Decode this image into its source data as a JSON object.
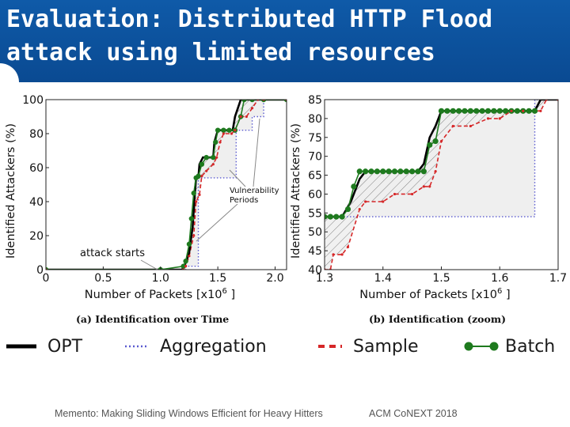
{
  "slide": {
    "title_line1": "Evaluation: Distributed HTTP Flood",
    "title_line2": "attack using limited resources",
    "footer_left": "Memento: Making Sliding Windows Efficient for Heavy Hitters",
    "footer_right": "ACM CoNEXT 2018"
  },
  "legend": [
    {
      "label": "OPT",
      "color": "#000000",
      "style": "solid"
    },
    {
      "label": "Aggregation",
      "color": "#5a5ad0",
      "style": "dotted"
    },
    {
      "label": "Sample",
      "color": "#d62728",
      "style": "dashed"
    },
    {
      "label": "Batch",
      "color": "#1e7a1e",
      "style": "dots"
    }
  ],
  "colors": {
    "title_bg": "#0f5aa8",
    "opt": "#000000",
    "aggregation": "#5a5ad0",
    "sample": "#d62728",
    "batch": "#1e7a1e",
    "shade": "#efefef"
  },
  "chart_data": [
    {
      "type": "line",
      "caption": "(a) Identification over Time",
      "xlabel": "Number of Packets [x10",
      "xlabel_exp": "6",
      "xlabel_end": "]",
      "ylabel": "Identified Attackers (%)",
      "xlim": [
        0,
        2.1
      ],
      "ylim": [
        0,
        100
      ],
      "xticks": [
        0,
        0.5,
        1.0,
        1.5,
        2.0
      ],
      "xtick_labels": [
        "0",
        "0.5",
        "1.0",
        "1.5",
        "2.0"
      ],
      "yticks": [
        0,
        20,
        40,
        60,
        80,
        100
      ],
      "yticks_labels": [
        "0",
        "20",
        "40",
        "60",
        "80",
        "100"
      ],
      "annotations": [
        {
          "text": "attack starts",
          "x": 1.0,
          "y": 0
        },
        {
          "text_lines": [
            "Vulnerability",
            "Periods"
          ],
          "x": [
            1.35,
            1.55
          ],
          "y": [
            8,
            55
          ]
        }
      ],
      "series": [
        {
          "key": "opt",
          "x": [
            0,
            1.19,
            1.2,
            1.22,
            1.25,
            1.28,
            1.3,
            1.31,
            1.33,
            1.34,
            1.37,
            1.46,
            1.47,
            1.5,
            1.55,
            1.63,
            1.65,
            1.7,
            1.73,
            2.1
          ],
          "y": [
            0,
            0,
            2,
            4,
            10,
            25,
            45,
            54,
            54,
            62,
            66,
            66,
            75,
            82,
            82,
            82,
            90,
            100,
            100,
            100
          ]
        },
        {
          "key": "aggregation",
          "x": [
            0,
            1.22,
            1.22,
            1.33,
            1.33,
            1.55,
            1.55,
            1.66,
            1.66,
            1.8,
            1.8,
            1.9,
            1.9,
            2.1
          ],
          "y": [
            0,
            0,
            2,
            2,
            54,
            54,
            54,
            54,
            82,
            82,
            90,
            90,
            100,
            100
          ]
        },
        {
          "key": "sample",
          "x": [
            0,
            1.2,
            1.22,
            1.25,
            1.29,
            1.31,
            1.34,
            1.36,
            1.4,
            1.46,
            1.49,
            1.52,
            1.55,
            1.62,
            1.65,
            1.7,
            1.75,
            1.8,
            1.85,
            1.9,
            2.1
          ],
          "y": [
            0,
            0,
            2,
            8,
            20,
            40,
            44,
            55,
            58,
            62,
            66,
            75,
            80,
            80,
            82,
            90,
            90,
            95,
            100,
            100,
            100
          ]
        },
        {
          "key": "batch",
          "x": [
            0,
            1.0,
            1.2,
            1.22,
            1.25,
            1.27,
            1.29,
            1.31,
            1.33,
            1.36,
            1.4,
            1.46,
            1.48,
            1.5,
            1.55,
            1.6,
            1.65,
            1.7,
            1.73,
            1.8,
            1.9,
            2.1
          ],
          "y": [
            0,
            0,
            2,
            5,
            15,
            30,
            45,
            54,
            55,
            62,
            66,
            66,
            75,
            82,
            82,
            82,
            82,
            90,
            100,
            100,
            100,
            100
          ]
        }
      ]
    },
    {
      "type": "line",
      "caption": "(b) Identification (zoom)",
      "xlabel": "Number of Packets [x10",
      "xlabel_exp": "6",
      "xlabel_end": "]",
      "ylabel": "Identified Attackers (%)",
      "xlim": [
        1.3,
        1.7
      ],
      "ylim": [
        40,
        85
      ],
      "xticks": [
        1.3,
        1.4,
        1.5,
        1.6,
        1.7
      ],
      "xtick_labels": [
        "1.3",
        "1.4",
        "1.5",
        "1.6",
        "1.7"
      ],
      "yticks": [
        40,
        45,
        50,
        55,
        60,
        65,
        70,
        75,
        80,
        85
      ],
      "yticks_labels": [
        "40",
        "45",
        "50",
        "55",
        "60",
        "65",
        "70",
        "75",
        "80",
        "85"
      ],
      "series": [
        {
          "key": "opt",
          "x": [
            1.3,
            1.33,
            1.345,
            1.36,
            1.37,
            1.46,
            1.47,
            1.48,
            1.49,
            1.5,
            1.66,
            1.67,
            1.7
          ],
          "y": [
            54,
            54,
            58,
            64,
            66,
            66,
            68,
            75,
            78,
            82,
            82,
            85,
            85
          ]
        },
        {
          "key": "aggregation",
          "x": [
            1.3,
            1.333,
            1.333,
            1.66,
            1.66,
            1.7
          ],
          "y": [
            54,
            54,
            54,
            54,
            85,
            85
          ]
        },
        {
          "key": "sample",
          "x": [
            1.3,
            1.31,
            1.315,
            1.33,
            1.34,
            1.36,
            1.37,
            1.4,
            1.42,
            1.45,
            1.47,
            1.48,
            1.49,
            1.5,
            1.52,
            1.55,
            1.58,
            1.6,
            1.62,
            1.64,
            1.67,
            1.68,
            1.7
          ],
          "y": [
            40,
            40,
            44,
            44,
            46,
            56,
            58,
            58,
            60,
            60,
            62,
            62,
            66,
            74,
            78,
            78,
            80,
            80,
            82,
            82,
            82,
            85,
            85
          ]
        },
        {
          "key": "batch",
          "x": [
            1.3,
            1.31,
            1.32,
            1.33,
            1.34,
            1.35,
            1.36,
            1.37,
            1.38,
            1.39,
            1.4,
            1.41,
            1.42,
            1.43,
            1.44,
            1.45,
            1.46,
            1.47,
            1.48,
            1.49,
            1.5,
            1.51,
            1.52,
            1.53,
            1.54,
            1.55,
            1.56,
            1.57,
            1.58,
            1.59,
            1.6,
            1.61,
            1.62,
            1.63,
            1.64,
            1.65,
            1.66
          ],
          "y": [
            54,
            54,
            54,
            54,
            56,
            62,
            66,
            66,
            66,
            66,
            66,
            66,
            66,
            66,
            66,
            66,
            66,
            66,
            73,
            74,
            82,
            82,
            82,
            82,
            82,
            82,
            82,
            82,
            82,
            82,
            82,
            82,
            82,
            82,
            82,
            82,
            82
          ]
        }
      ]
    }
  ]
}
